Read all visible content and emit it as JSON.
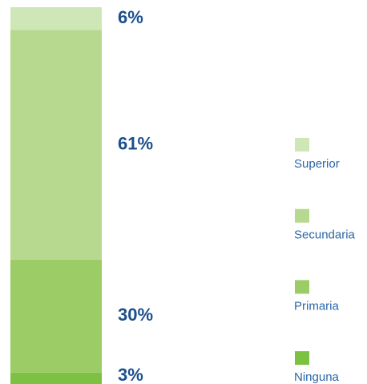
{
  "chart_data": {
    "type": "stacked_bar",
    "ylim": [
      0,
      100
    ],
    "series": [
      {
        "name": "Ninguna",
        "color": "#7dc142",
        "values": [
          3
        ],
        "value_labels": [
          "3%"
        ]
      },
      {
        "name": "Primaria",
        "color": "#9ccc65",
        "values": [
          30
        ],
        "value_labels": [
          "30%"
        ]
      },
      {
        "name": "Secundaria",
        "color": "#b6d98f",
        "values": [
          61
        ],
        "value_labels": [
          "61%"
        ]
      },
      {
        "name": "Superior",
        "color": "#cfe6b6",
        "values": [
          6
        ],
        "value_labels": [
          "6%"
        ]
      }
    ]
  }
}
